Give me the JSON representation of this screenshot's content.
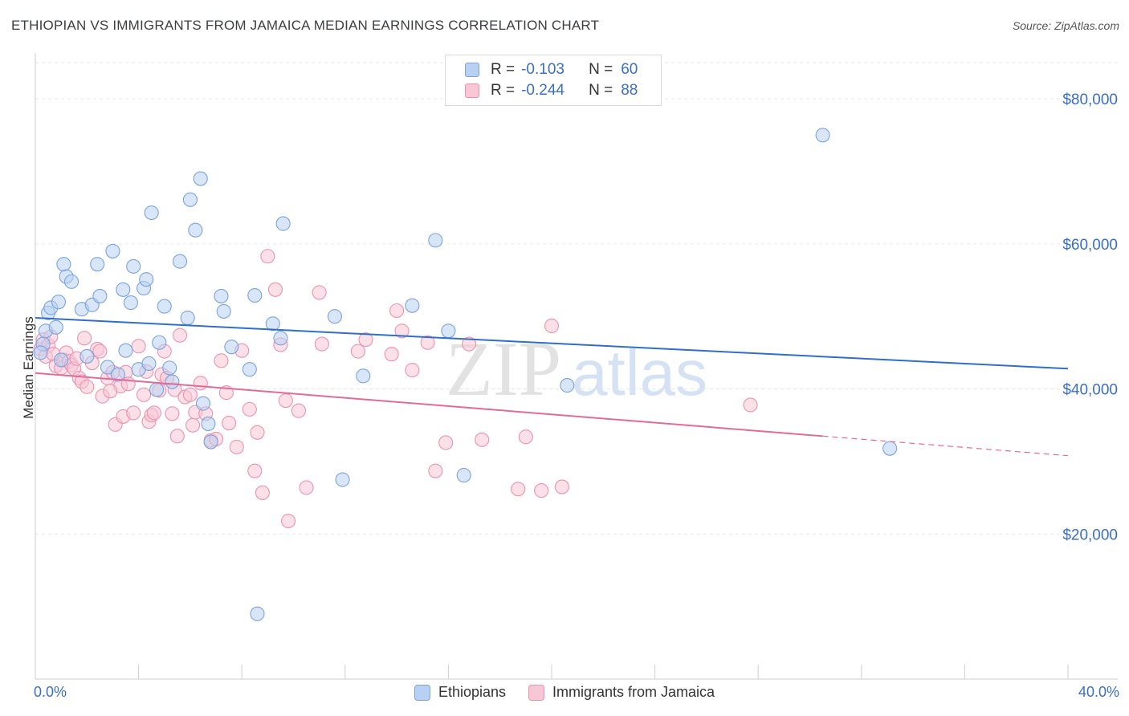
{
  "header": {
    "title": "ETHIOPIAN VS IMMIGRANTS FROM JAMAICA MEDIAN EARNINGS CORRELATION CHART",
    "source": "Source: ZipAtlas.com"
  },
  "watermark": {
    "zip": "ZIP",
    "atlas": "atlas"
  },
  "colors": {
    "blue_fill": "#b8d1f2",
    "blue_stroke": "#7aa3de",
    "blue_line": "#2f6fc9",
    "pink_fill": "#f8c7d6",
    "pink_stroke": "#ea93b0",
    "pink_line": "#e06c98",
    "tick_text": "#3b6fc4",
    "grid": "#e6e6e6"
  },
  "legend": {
    "rows": [
      {
        "r_label": "R =",
        "r_value": "-0.103",
        "n_label": "N =",
        "n_value": "60"
      },
      {
        "r_label": "R =",
        "r_value": "-0.244",
        "n_label": "N =",
        "n_value": "88"
      }
    ]
  },
  "chart_data": {
    "type": "scatter",
    "ylabel": "Median Earnings",
    "xlim": [
      0,
      40
    ],
    "ylim": [
      0,
      85000
    ],
    "x_tick_labels": [
      "0.0%",
      "40.0%"
    ],
    "y_ticks": [
      20000,
      40000,
      60000,
      80000
    ],
    "y_tick_labels": [
      "$20,000",
      "$40,000",
      "$60,000",
      "$80,000"
    ],
    "grid": true,
    "legend_position": "top-center",
    "series": [
      {
        "name": "Ethiopians",
        "trend": {
          "x": [
            0,
            40
          ],
          "y": [
            49800,
            42800
          ]
        },
        "points": [
          [
            0.3,
            46200
          ],
          [
            0.4,
            48000
          ],
          [
            0.5,
            50500
          ],
          [
            0.6,
            51200
          ],
          [
            0.8,
            48500
          ],
          [
            0.9,
            52000
          ],
          [
            1.1,
            57200
          ],
          [
            1.2,
            55500
          ],
          [
            1.4,
            54800
          ],
          [
            1.8,
            51000
          ],
          [
            2.0,
            44500
          ],
          [
            2.2,
            51600
          ],
          [
            2.4,
            57200
          ],
          [
            2.5,
            52800
          ],
          [
            2.8,
            43000
          ],
          [
            3.0,
            59000
          ],
          [
            3.2,
            42000
          ],
          [
            3.4,
            53700
          ],
          [
            3.5,
            45300
          ],
          [
            3.7,
            51900
          ],
          [
            3.8,
            56900
          ],
          [
            4.0,
            42700
          ],
          [
            4.2,
            53900
          ],
          [
            4.3,
            55100
          ],
          [
            4.4,
            43500
          ],
          [
            4.5,
            64300
          ],
          [
            4.7,
            39900
          ],
          [
            4.8,
            46400
          ],
          [
            5.0,
            51400
          ],
          [
            5.2,
            42900
          ],
          [
            5.3,
            41000
          ],
          [
            5.6,
            57600
          ],
          [
            5.9,
            49800
          ],
          [
            6.0,
            66100
          ],
          [
            6.2,
            61900
          ],
          [
            6.4,
            69000
          ],
          [
            6.7,
            35200
          ],
          [
            6.8,
            32700
          ],
          [
            7.2,
            52800
          ],
          [
            7.3,
            50700
          ],
          [
            7.6,
            45800
          ],
          [
            8.3,
            42700
          ],
          [
            8.5,
            52900
          ],
          [
            8.6,
            9000
          ],
          [
            9.2,
            49000
          ],
          [
            9.5,
            47000
          ],
          [
            9.6,
            62800
          ],
          [
            11.6,
            50000
          ],
          [
            11.9,
            27500
          ],
          [
            12.7,
            41800
          ],
          [
            14.6,
            51500
          ],
          [
            15.5,
            60500
          ],
          [
            16.0,
            48000
          ],
          [
            16.6,
            28100
          ],
          [
            20.6,
            40500
          ],
          [
            30.5,
            75000
          ],
          [
            33.1,
            31800
          ],
          [
            0.2,
            45000
          ],
          [
            1.0,
            44000
          ],
          [
            6.5,
            38000
          ]
        ]
      },
      {
        "name": "Immigrants from Jamaica",
        "trend": {
          "x": [
            0,
            30.5
          ],
          "y": [
            42200,
            33500
          ]
        },
        "trend_dashed": {
          "x": [
            30.5,
            40
          ],
          "y": [
            33500,
            30800
          ]
        },
        "points": [
          [
            0.2,
            45500
          ],
          [
            0.3,
            46800
          ],
          [
            0.4,
            44500
          ],
          [
            0.5,
            46000
          ],
          [
            0.6,
            47200
          ],
          [
            0.7,
            44800
          ],
          [
            0.8,
            43200
          ],
          [
            1.0,
            42900
          ],
          [
            1.1,
            44000
          ],
          [
            1.2,
            45000
          ],
          [
            1.3,
            43800
          ],
          [
            1.4,
            43300
          ],
          [
            1.5,
            42800
          ],
          [
            1.6,
            44200
          ],
          [
            1.7,
            41500
          ],
          [
            1.8,
            41000
          ],
          [
            1.9,
            47000
          ],
          [
            2.0,
            40300
          ],
          [
            2.2,
            43600
          ],
          [
            2.4,
            45500
          ],
          [
            2.5,
            45200
          ],
          [
            2.6,
            39000
          ],
          [
            2.8,
            41500
          ],
          [
            3.0,
            42300
          ],
          [
            3.1,
            35100
          ],
          [
            3.3,
            40400
          ],
          [
            3.4,
            36200
          ],
          [
            3.5,
            42300
          ],
          [
            3.6,
            40700
          ],
          [
            3.8,
            36700
          ],
          [
            4.0,
            45900
          ],
          [
            4.2,
            39200
          ],
          [
            4.3,
            42400
          ],
          [
            4.4,
            35500
          ],
          [
            4.5,
            36400
          ],
          [
            4.6,
            36700
          ],
          [
            4.8,
            39800
          ],
          [
            4.9,
            42000
          ],
          [
            5.0,
            45200
          ],
          [
            5.1,
            41500
          ],
          [
            5.3,
            36600
          ],
          [
            5.4,
            39900
          ],
          [
            5.5,
            33500
          ],
          [
            5.6,
            47400
          ],
          [
            5.8,
            38900
          ],
          [
            6.0,
            39200
          ],
          [
            6.1,
            35000
          ],
          [
            6.2,
            36800
          ],
          [
            6.4,
            40800
          ],
          [
            6.6,
            36600
          ],
          [
            6.8,
            32900
          ],
          [
            7.0,
            33100
          ],
          [
            7.2,
            43900
          ],
          [
            7.4,
            39500
          ],
          [
            7.5,
            35300
          ],
          [
            7.8,
            32000
          ],
          [
            8.0,
            45300
          ],
          [
            8.3,
            37200
          ],
          [
            8.5,
            28700
          ],
          [
            8.6,
            34000
          ],
          [
            8.8,
            25700
          ],
          [
            9.0,
            58300
          ],
          [
            9.3,
            53700
          ],
          [
            9.5,
            46100
          ],
          [
            9.7,
            38400
          ],
          [
            9.8,
            21800
          ],
          [
            10.2,
            37000
          ],
          [
            10.5,
            26400
          ],
          [
            11.0,
            53300
          ],
          [
            11.1,
            46200
          ],
          [
            12.5,
            45200
          ],
          [
            12.8,
            46800
          ],
          [
            13.8,
            44800
          ],
          [
            14.0,
            50800
          ],
          [
            14.2,
            48000
          ],
          [
            14.6,
            42600
          ],
          [
            15.2,
            46400
          ],
          [
            15.5,
            28700
          ],
          [
            15.9,
            32600
          ],
          [
            16.8,
            46200
          ],
          [
            17.3,
            33000
          ],
          [
            18.7,
            26200
          ],
          [
            19.0,
            33400
          ],
          [
            19.6,
            26000
          ],
          [
            20.0,
            48700
          ],
          [
            20.4,
            26500
          ],
          [
            27.7,
            37800
          ],
          [
            2.9,
            39700
          ]
        ]
      }
    ]
  }
}
